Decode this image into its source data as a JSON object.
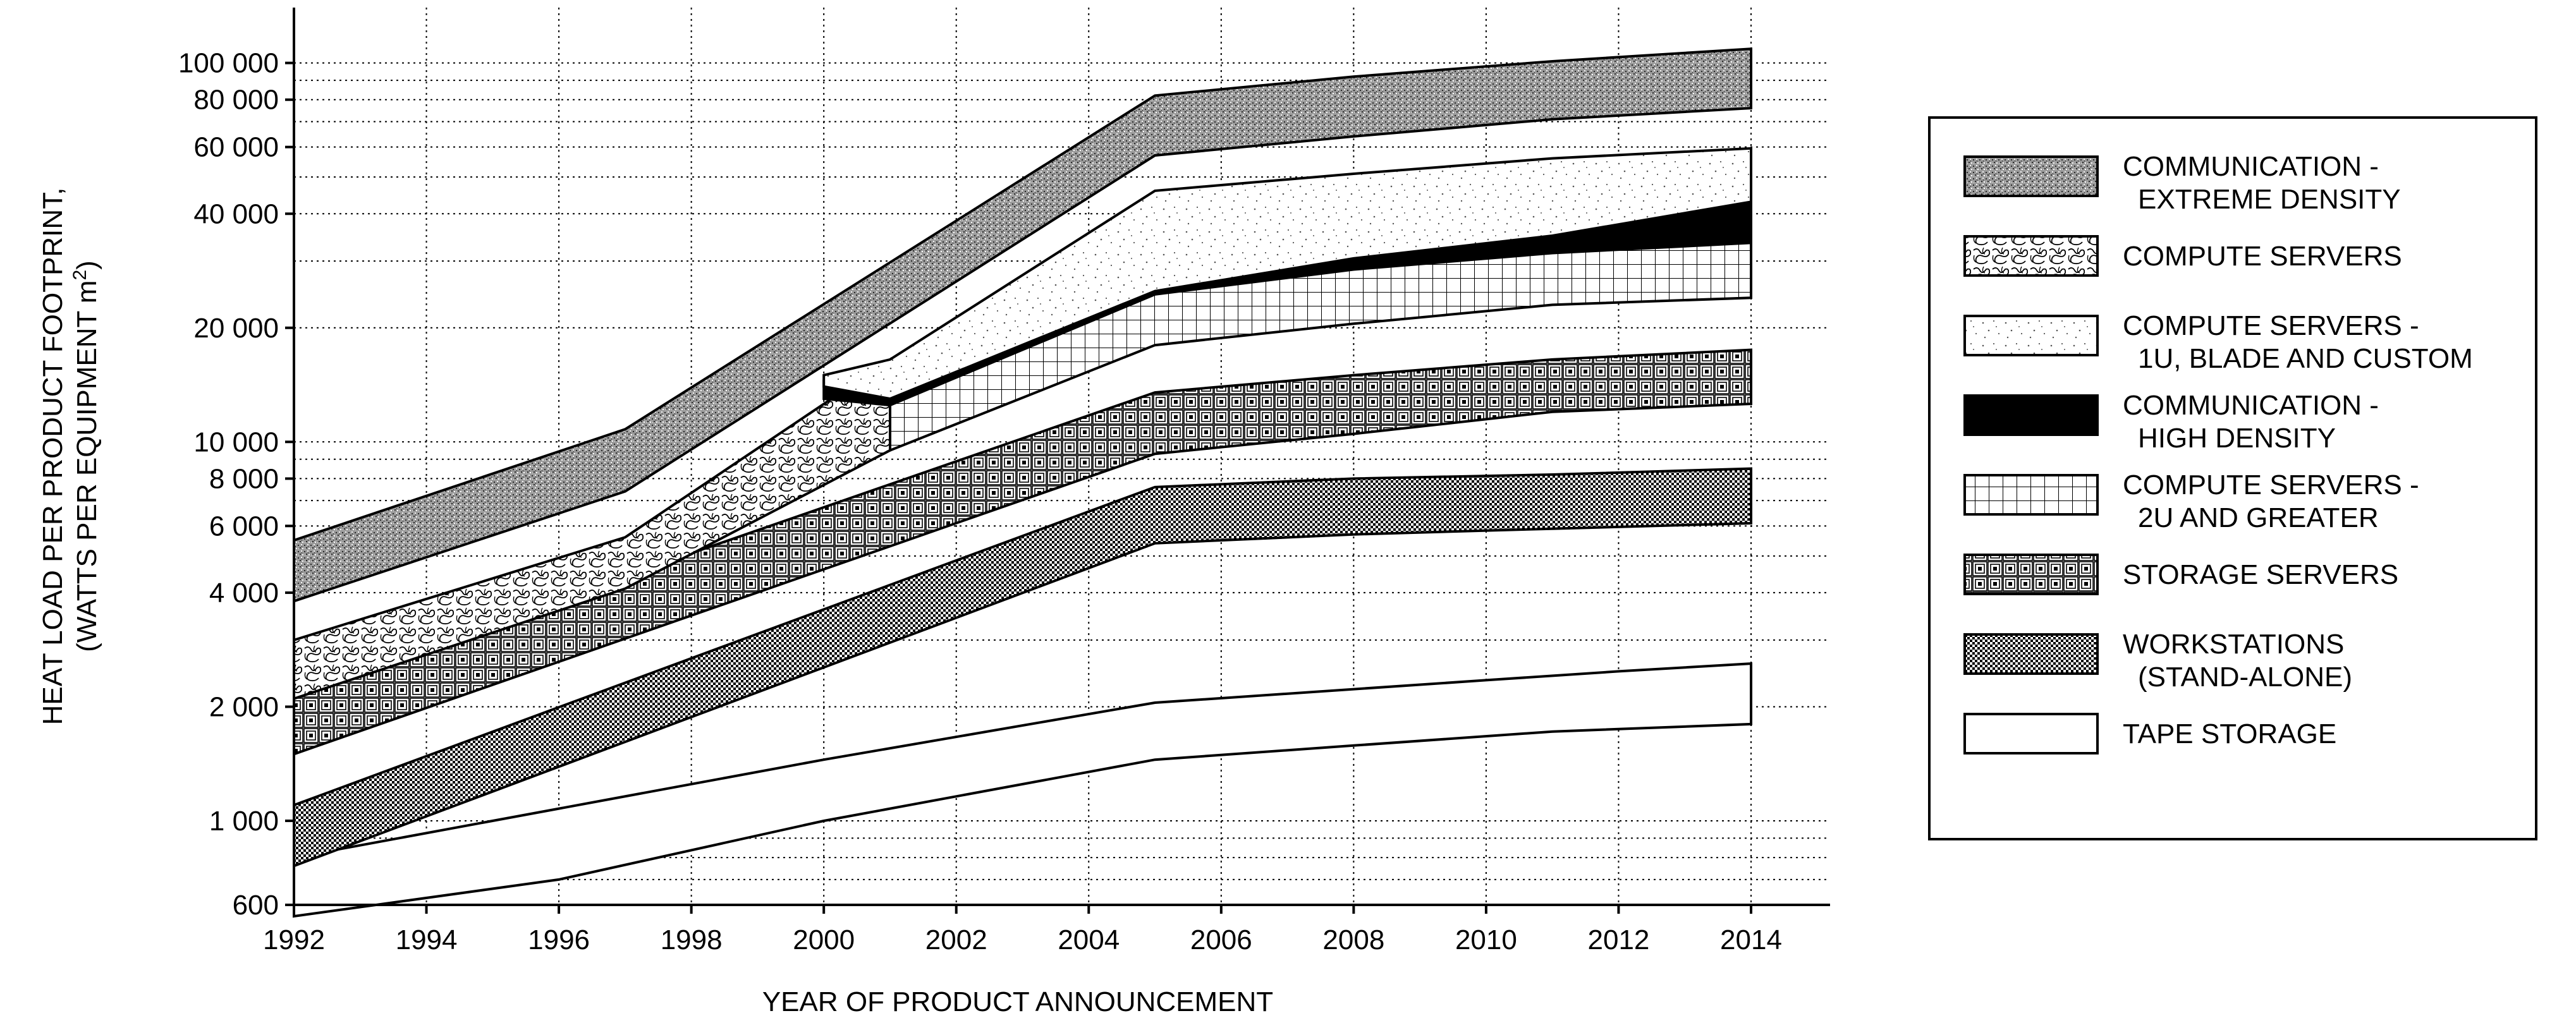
{
  "chart_data": {
    "type": "area",
    "xlabel": "YEAR OF PRODUCT ANNOUNCEMENT",
    "ylabel_line1": "HEAT LOAD PER PRODUCT FOOTPRINT,",
    "ylabel_line2_prefix": "(WATTS PER EQUIPMENT m",
    "ylabel_line2_sup": "2",
    "ylabel_line2_suffix": ")",
    "y_scale": "log",
    "xlim": [
      1992,
      2015.2
    ],
    "ylim": [
      600,
      140000
    ],
    "grid": true,
    "legend_position": "right",
    "x_ticks": [
      1992,
      1994,
      1996,
      1998,
      2000,
      2002,
      2004,
      2006,
      2008,
      2010,
      2012,
      2014
    ],
    "x_tick_labels": [
      "1992",
      "1994",
      "1996",
      "1998",
      "2000",
      "2002",
      "2004",
      "2006",
      "2008",
      "2010",
      "2012",
      "2014"
    ],
    "y_ticks": [
      600,
      1000,
      2000,
      4000,
      6000,
      8000,
      10000,
      20000,
      40000,
      60000,
      80000,
      100000
    ],
    "y_tick_labels": [
      "600",
      "1 000",
      "2 000",
      "4 000",
      "6 000",
      "8 000",
      "10 000",
      "20 000",
      "40 000",
      "60 000",
      "80 000",
      "100 000"
    ],
    "y_minor_grid": [
      700,
      800,
      900,
      3000,
      5000,
      7000,
      9000,
      30000,
      50000,
      70000,
      90000
    ],
    "series": [
      {
        "name": "TAPE STORAGE",
        "pattern": "white",
        "upper": [
          [
            1992,
            800
          ],
          [
            1995,
            1000
          ],
          [
            2000,
            1450
          ],
          [
            2005,
            2050
          ],
          [
            2010,
            2350
          ],
          [
            2012,
            2480
          ],
          [
            2014,
            2600
          ]
        ],
        "lower": [
          [
            1992,
            560
          ],
          [
            1996,
            700
          ],
          [
            2000,
            1000
          ],
          [
            2005,
            1450
          ],
          [
            2008,
            1580
          ],
          [
            2011,
            1720
          ],
          [
            2014,
            1800
          ]
        ]
      },
      {
        "name": "WORKSTATIONS\n(STAND-ALONE)",
        "pattern": "checker",
        "upper": [
          [
            1992,
            1100
          ],
          [
            2005,
            7600
          ],
          [
            2008,
            8000
          ],
          [
            2011,
            8200
          ],
          [
            2014,
            8500
          ]
        ],
        "lower": [
          [
            1992,
            760
          ],
          [
            2005,
            5400
          ],
          [
            2008,
            5700
          ],
          [
            2011,
            5900
          ],
          [
            2014,
            6100
          ]
        ]
      },
      {
        "name": "STORAGE SERVERS",
        "pattern": "squares",
        "upper": [
          [
            1992,
            2200
          ],
          [
            2005,
            13500
          ],
          [
            2008,
            15000
          ],
          [
            2011,
            16500
          ],
          [
            2014,
            17500
          ]
        ],
        "lower": [
          [
            1992,
            1500
          ],
          [
            2005,
            9300
          ],
          [
            2008,
            10500
          ],
          [
            2011,
            12000
          ],
          [
            2014,
            12600
          ]
        ]
      },
      {
        "name": "COMPUTE SERVERS",
        "pattern": "squiggle",
        "upper": [
          [
            1992,
            3000
          ],
          [
            1997,
            5600
          ],
          [
            2001,
            16500
          ]
        ],
        "lower": [
          [
            1992,
            2100
          ],
          [
            1997,
            4100
          ],
          [
            2001,
            9500
          ]
        ]
      },
      {
        "name": "COMPUTE SERVERS -\n2U AND GREATER",
        "pattern": "grid",
        "upper": [
          [
            2001,
            13000
          ],
          [
            2005,
            28000
          ],
          [
            2008,
            30500
          ],
          [
            2011,
            32500
          ],
          [
            2014,
            35000
          ]
        ],
        "lower": [
          [
            2001,
            9500
          ],
          [
            2005,
            18000
          ],
          [
            2008,
            20500
          ],
          [
            2011,
            23000
          ],
          [
            2014,
            24000
          ]
        ]
      },
      {
        "name": "COMMUNICATION -\nHIGH DENSITY",
        "pattern": "black",
        "upper": [
          [
            2000,
            14500
          ],
          [
            2001,
            15500
          ],
          [
            2005,
            31000
          ],
          [
            2008,
            35500
          ],
          [
            2011,
            39500
          ],
          [
            2014,
            43000
          ]
        ],
        "lower": [
          [
            2000,
            13000
          ],
          [
            2001,
            12500
          ],
          [
            2005,
            24500
          ],
          [
            2008,
            28500
          ],
          [
            2011,
            31500
          ],
          [
            2014,
            33500
          ]
        ]
      },
      {
        "name": "COMPUTE SERVERS -\n1U, BLADE AND CUSTOM",
        "pattern": "dots",
        "upper": [
          [
            2000,
            15000
          ],
          [
            2001,
            16500
          ],
          [
            2005,
            46000
          ],
          [
            2008,
            51000
          ],
          [
            2011,
            56000
          ],
          [
            2014,
            59500
          ]
        ],
        "lower": [
          [
            2000,
            14000
          ],
          [
            2001,
            13000
          ],
          [
            2005,
            25000
          ],
          [
            2008,
            30500
          ],
          [
            2011,
            35000
          ],
          [
            2014,
            43000
          ]
        ]
      },
      {
        "name": "COMMUNICATION -\nEXTREME DENSITY",
        "pattern": "stipple",
        "upper": [
          [
            1992,
            5500
          ],
          [
            1997,
            10800
          ],
          [
            2005,
            82000
          ],
          [
            2008,
            92000
          ],
          [
            2011,
            101000
          ],
          [
            2014,
            109000
          ]
        ],
        "lower": [
          [
            1992,
            3800
          ],
          [
            1997,
            7400
          ],
          [
            2005,
            57000
          ],
          [
            2008,
            64000
          ],
          [
            2011,
            71000
          ],
          [
            2014,
            76000
          ]
        ]
      }
    ],
    "legend_order": [
      "COMMUNICATION -\nEXTREME DENSITY",
      "COMPUTE SERVERS",
      "COMPUTE SERVERS -\n1U, BLADE AND CUSTOM",
      "COMMUNICATION -\nHIGH DENSITY",
      "COMPUTE SERVERS -\n2U AND GREATER",
      "STORAGE SERVERS",
      "WORKSTATIONS\n(STAND-ALONE)",
      "TAPE STORAGE"
    ]
  }
}
